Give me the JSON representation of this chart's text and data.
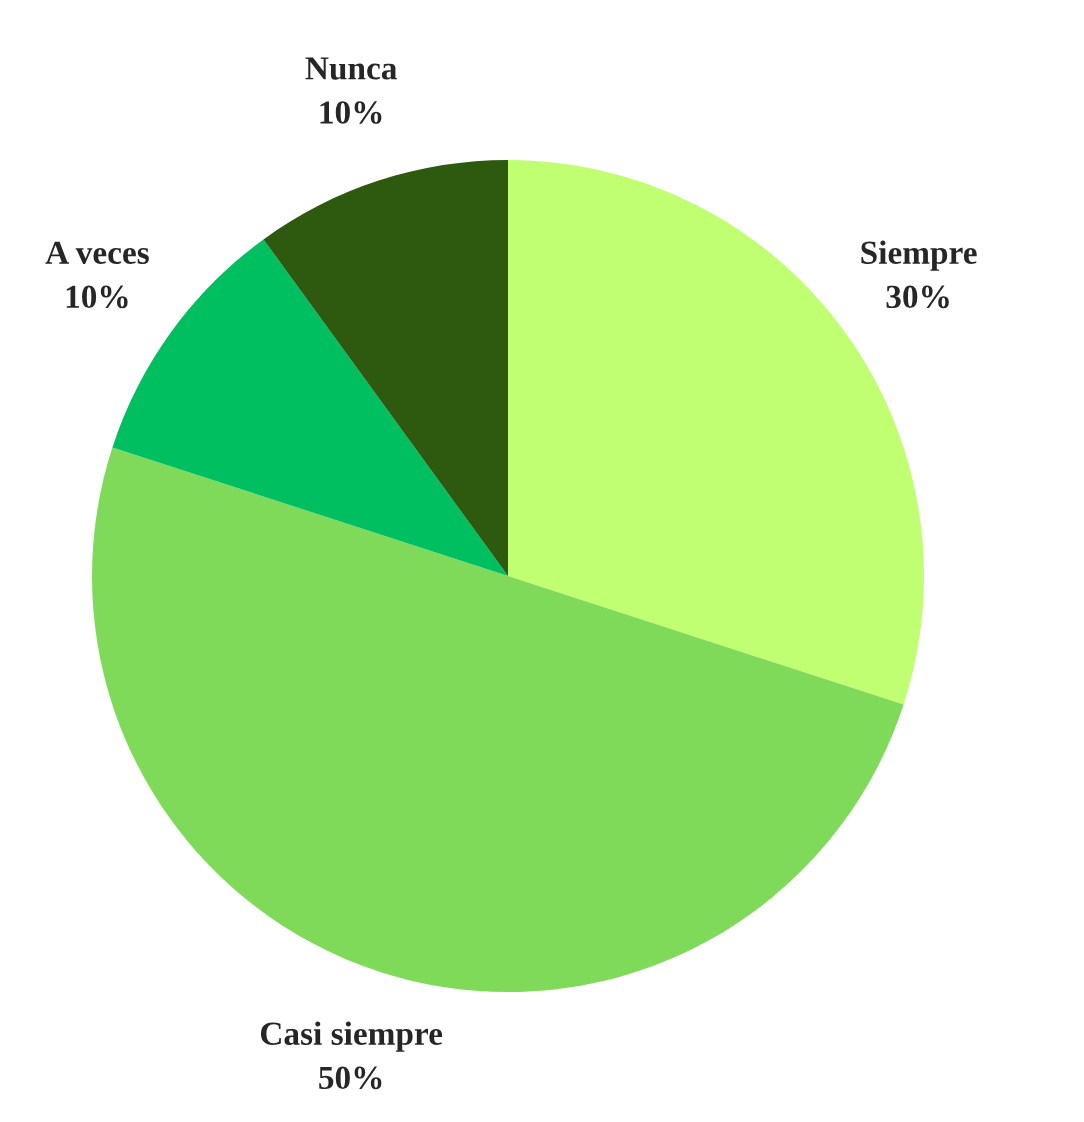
{
  "chart_data": {
    "type": "pie",
    "categories": [
      "Siempre",
      "Casi siempre",
      "A veces",
      "Nunca"
    ],
    "values": [
      30,
      50,
      10,
      10
    ],
    "value_labels": [
      "30%",
      "50%",
      "10%",
      "10%"
    ],
    "colors": [
      "#c0ff72",
      "#80da5a",
      "#00bf60",
      "#2e5a0f"
    ]
  }
}
